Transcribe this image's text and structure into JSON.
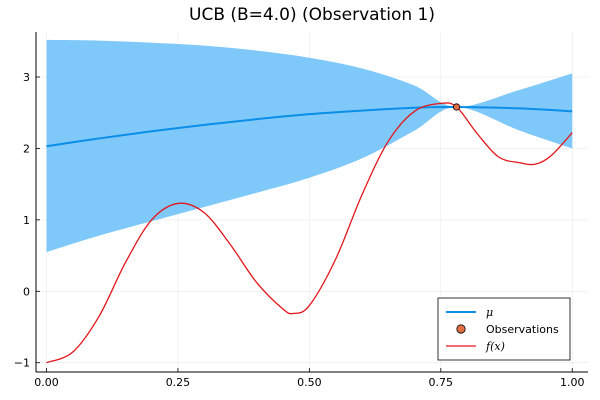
{
  "chart_data": {
    "type": "line",
    "title": "UCB (B=4.0) (Observation 1)",
    "xlabel": "",
    "ylabel": "",
    "xlim": [
      -0.02,
      1.03
    ],
    "ylim": [
      -1.13,
      3.63
    ],
    "x_ticks": [
      0.0,
      0.25,
      0.5,
      0.75,
      1.0
    ],
    "x_tick_labels": [
      "0.00",
      "0.25",
      "0.50",
      "0.75",
      "1.00"
    ],
    "y_ticks": [
      -1,
      0,
      1,
      2,
      3
    ],
    "y_tick_labels": [
      "−1",
      "0",
      "1",
      "2",
      "3"
    ],
    "grid": true,
    "legend_position": "bottom-right",
    "colors": {
      "mu": "#0a8ee8",
      "band": "#7fc8fa",
      "f": "#e3161b",
      "observation": "#e26f45"
    },
    "series": [
      {
        "name": "μ",
        "kind": "line",
        "x": [
          0.0,
          0.1,
          0.2,
          0.3,
          0.4,
          0.5,
          0.6,
          0.7,
          0.78,
          0.9,
          1.0
        ],
        "y": [
          2.03,
          2.14,
          2.24,
          2.33,
          2.41,
          2.48,
          2.53,
          2.57,
          2.58,
          2.56,
          2.52
        ]
      },
      {
        "name": "",
        "kind": "band",
        "x": [
          0.0,
          0.1,
          0.2,
          0.3,
          0.4,
          0.5,
          0.6,
          0.7,
          0.78,
          0.9,
          1.0
        ],
        "lower": [
          0.55,
          0.78,
          0.98,
          1.18,
          1.38,
          1.59,
          1.86,
          2.25,
          2.58,
          2.25,
          2.0
        ],
        "upper": [
          3.52,
          3.51,
          3.48,
          3.44,
          3.37,
          3.27,
          3.12,
          2.88,
          2.58,
          2.82,
          3.05
        ]
      },
      {
        "name": "Observations",
        "kind": "scatter",
        "x": [
          0.78
        ],
        "y": [
          2.58
        ]
      },
      {
        "name": "f(x)",
        "kind": "line",
        "x": [
          0.0,
          0.05,
          0.1,
          0.15,
          0.2,
          0.25,
          0.3,
          0.35,
          0.4,
          0.45,
          0.47,
          0.5,
          0.55,
          0.6,
          0.65,
          0.7,
          0.75,
          0.78,
          0.82,
          0.86,
          0.9,
          0.93,
          0.96,
          1.0
        ],
        "y": [
          -1.0,
          -0.85,
          -0.35,
          0.4,
          1.0,
          1.23,
          1.1,
          0.65,
          0.12,
          -0.25,
          -0.31,
          -0.2,
          0.45,
          1.35,
          2.1,
          2.52,
          2.63,
          2.58,
          2.2,
          1.88,
          1.8,
          1.78,
          1.9,
          2.22
        ]
      }
    ],
    "legend": [
      {
        "label": "μ",
        "symbol": "line",
        "series": 0
      },
      {
        "label": "Observations",
        "symbol": "marker",
        "series": 2
      },
      {
        "label": "f(x)",
        "symbol": "line",
        "series": 3
      }
    ]
  }
}
